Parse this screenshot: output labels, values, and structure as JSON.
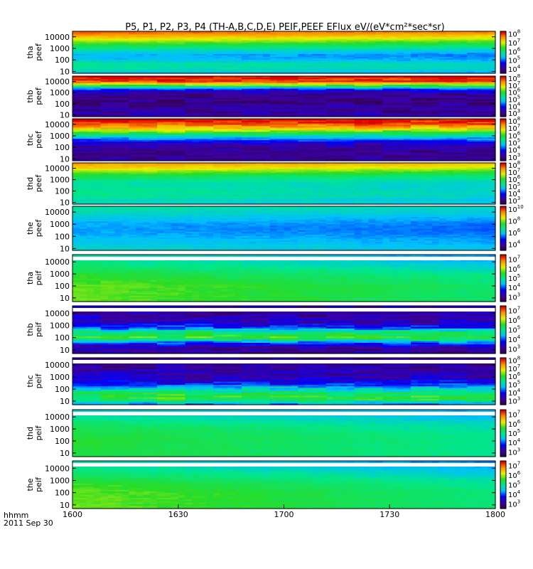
{
  "chart_data": {
    "type": "heatmap",
    "title": "P5, P1, P2, P3, P4 (TH-A,B,C,D,E) PEIF,PEEF EFlux eV/(eV*cm²*sec*sr)",
    "x_tick_labels": [
      "1600",
      "1630",
      "1700",
      "1730",
      "1800"
    ],
    "x_label_lines": [
      "hhmm",
      "2011 Sep 30"
    ],
    "xlim": [
      "16:00",
      "18:00"
    ],
    "y_scale": "log",
    "y_ticks": [
      10,
      100,
      1000,
      10000
    ],
    "y_tick_labels": [
      "10",
      "100",
      "1000",
      "10000"
    ],
    "colorscale": "rainbow (purple-blue-cyan-green-yellow-red)",
    "panels": [
      {
        "label": [
          "tha",
          "peef"
        ],
        "ylim": [
          7,
          30000
        ],
        "cbar": [
          "10",
          "4",
          "5",
          "6",
          "7",
          "8"
        ],
        "cbar_min": 3.5,
        "cbar_max": 8.3,
        "profile": [
          0.92,
          0.82,
          0.7,
          0.58,
          0.46,
          0.38,
          0.4,
          0.5,
          0.48,
          0.42
        ],
        "drift": -0.05,
        "blocky": 0.03,
        "topband": 0
      },
      {
        "label": [
          "thb",
          "peef"
        ],
        "ylim": [
          7,
          30000
        ],
        "cbar": [
          "10",
          "3",
          "4",
          "5",
          "6",
          "7",
          "8"
        ],
        "cbar_min": 2.5,
        "cbar_max": 8.3,
        "profile": [
          1.0,
          0.95,
          0.6,
          0.2,
          0.1,
          0.08,
          0.08,
          0.12,
          0.1,
          0.14
        ],
        "drift": 0,
        "blocky": 0.14,
        "topband": 0
      },
      {
        "label": [
          "thc",
          "peef"
        ],
        "ylim": [
          7,
          30000
        ],
        "cbar": [
          "10",
          "3",
          "4",
          "5",
          "6",
          "7",
          "8"
        ],
        "cbar_min": 2.5,
        "cbar_max": 8.3,
        "profile": [
          1.0,
          0.92,
          0.78,
          0.58,
          0.38,
          0.2,
          0.12,
          0.1,
          0.08,
          0.12
        ],
        "drift": 0,
        "blocky": 0.12,
        "topband": 0
      },
      {
        "label": [
          "thd",
          "peef"
        ],
        "ylim": [
          7,
          30000
        ],
        "cbar": [
          "10",
          "3",
          "4",
          "5",
          "6",
          "7",
          "8"
        ],
        "cbar_min": 2.5,
        "cbar_max": 8.3,
        "profile": [
          0.86,
          0.78,
          0.66,
          0.56,
          0.5,
          0.48,
          0.5,
          0.5,
          0.47,
          0.45
        ],
        "drift": -0.06,
        "blocky": 0.03,
        "topband": 0
      },
      {
        "label": [
          "the",
          "peef"
        ],
        "ylim": [
          7,
          30000
        ],
        "cbar": [
          "10",
          "4",
          "6",
          "8",
          "10"
        ],
        "cbar_min": 3,
        "cbar_max": 10.5,
        "profile": [
          0.48,
          0.46,
          0.42,
          0.38,
          0.36,
          0.36,
          0.38,
          0.4,
          0.42,
          0.44
        ],
        "drift": -0.04,
        "blocky": 0.02,
        "topband": 0
      },
      {
        "label": [
          "tha",
          "peif"
        ],
        "ylim": [
          5,
          40000
        ],
        "cbar": [
          "10",
          "3",
          "4",
          "5",
          "6",
          "7"
        ],
        "cbar_min": 2.5,
        "cbar_max": 7.5,
        "profile": [
          0.48,
          0.5,
          0.54,
          0.58,
          0.62,
          0.64,
          0.66,
          0.66,
          0.66,
          0.66
        ],
        "drift": -0.12,
        "blocky": 0.03,
        "topband": 1
      },
      {
        "label": [
          "thb",
          "peif"
        ],
        "ylim": [
          5,
          40000
        ],
        "cbar": [
          "10",
          "3",
          "4",
          "5",
          "6",
          "7"
        ],
        "cbar_min": 2.5,
        "cbar_max": 7.5,
        "profile": [
          0.15,
          0.12,
          0.15,
          0.18,
          0.28,
          0.55,
          0.62,
          0.3,
          0.12,
          0.1
        ],
        "drift": 0,
        "blocky": 0.16,
        "topband": 1
      },
      {
        "label": [
          "thc",
          "peif"
        ],
        "ylim": [
          5,
          40000
        ],
        "cbar": [
          "10",
          "3",
          "4",
          "5",
          "6",
          "7",
          "8"
        ],
        "cbar_min": 2.5,
        "cbar_max": 8.3,
        "profile": [
          0.08,
          0.1,
          0.12,
          0.14,
          0.18,
          0.28,
          0.45,
          0.58,
          0.6,
          0.35
        ],
        "drift": 0,
        "blocky": 0.16,
        "topband": 1
      },
      {
        "label": [
          "thd",
          "peif"
        ],
        "ylim": [
          5,
          40000
        ],
        "cbar": [
          "10",
          "3",
          "4",
          "5",
          "6",
          "7"
        ],
        "cbar_min": 2.5,
        "cbar_max": 7.5,
        "profile": [
          0.46,
          0.48,
          0.52,
          0.56,
          0.58,
          0.6,
          0.6,
          0.6,
          0.6,
          0.6
        ],
        "drift": -0.1,
        "blocky": 0.03,
        "topband": 1
      },
      {
        "label": [
          "the",
          "peif"
        ],
        "ylim": [
          5,
          40000
        ],
        "cbar": [
          "10",
          "3",
          "4",
          "5",
          "6",
          "7"
        ],
        "cbar_min": 2.5,
        "cbar_max": 7.5,
        "profile": [
          0.48,
          0.5,
          0.54,
          0.58,
          0.62,
          0.64,
          0.66,
          0.66,
          0.66,
          0.66
        ],
        "drift": -0.14,
        "blocky": 0.03,
        "topband": 1
      }
    ]
  }
}
